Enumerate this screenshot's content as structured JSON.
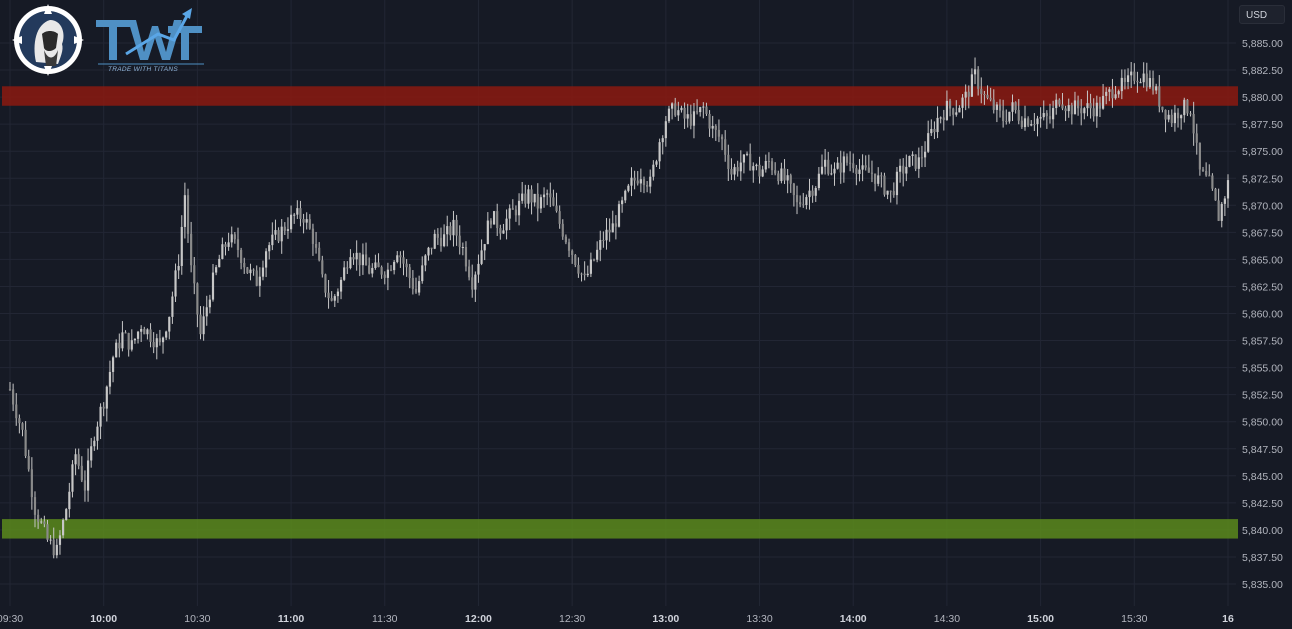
{
  "brand": {
    "wordmark": "TWT",
    "tagline": "TRADE WITH TITANS",
    "logo_icon": "titan-head-compass-icon",
    "colors": {
      "wordmark": "#4f90c4",
      "arrow": "#5aa6e6"
    }
  },
  "axis": {
    "currency": "USD"
  },
  "colors": {
    "background": "#161a25",
    "grid": "#222634",
    "candle": "#c7c7c7",
    "resistance_zone": "#8b1a10",
    "support_zone": "#5a8a1c"
  },
  "chart_data": {
    "type": "candlestick",
    "title": "",
    "xlabel": "",
    "ylabel": "",
    "y_ticks": [
      "5,885.00",
      "5,882.50",
      "5,880.00",
      "5,877.50",
      "5,875.00",
      "5,872.50",
      "5,870.00",
      "5,867.50",
      "5,865.00",
      "5,862.50",
      "5,860.00",
      "5,857.50",
      "5,855.00",
      "5,852.50",
      "5,850.00",
      "5,847.50",
      "5,845.00",
      "5,842.50",
      "5,840.00",
      "5,837.50",
      "5,835.00"
    ],
    "y_tick_values": [
      5885,
      5882.5,
      5880,
      5877.5,
      5875,
      5872.5,
      5870,
      5867.5,
      5865,
      5862.5,
      5860,
      5857.5,
      5855,
      5852.5,
      5850,
      5847.5,
      5845,
      5842.5,
      5840,
      5837.5,
      5835
    ],
    "x_ticks": [
      {
        "label": "09:30",
        "time": "09:30",
        "bold": false
      },
      {
        "label": "10:00",
        "time": "10:00",
        "bold": true
      },
      {
        "label": "10:30",
        "time": "10:30",
        "bold": false
      },
      {
        "label": "11:00",
        "time": "11:00",
        "bold": true
      },
      {
        "label": "11:30",
        "time": "11:30",
        "bold": false
      },
      {
        "label": "12:00",
        "time": "12:00",
        "bold": true
      },
      {
        "label": "12:30",
        "time": "12:30",
        "bold": false
      },
      {
        "label": "13:00",
        "time": "13:00",
        "bold": true
      },
      {
        "label": "13:30",
        "time": "13:30",
        "bold": false
      },
      {
        "label": "14:00",
        "time": "14:00",
        "bold": true
      },
      {
        "label": "14:30",
        "time": "14:30",
        "bold": false
      },
      {
        "label": "15:00",
        "time": "15:00",
        "bold": true
      },
      {
        "label": "15:30",
        "time": "15:30",
        "bold": false
      },
      {
        "label": "16",
        "time": "16:00",
        "bold": true
      }
    ],
    "zones": [
      {
        "name": "resistance",
        "low": 5879.2,
        "high": 5881.0,
        "color": "#8b1a10"
      },
      {
        "name": "support",
        "low": 5839.2,
        "high": 5841.0,
        "color": "#5a8a1c"
      }
    ],
    "price_path": [
      [
        "09:30",
        5853
      ],
      [
        "09:34",
        5849
      ],
      [
        "09:38",
        5842
      ],
      [
        "09:42",
        5839
      ],
      [
        "09:45",
        5838
      ],
      [
        "09:48",
        5842
      ],
      [
        "09:51",
        5847
      ],
      [
        "09:54",
        5844
      ],
      [
        "09:57",
        5849
      ],
      [
        "10:00",
        5852
      ],
      [
        "10:03",
        5856
      ],
      [
        "10:06",
        5858
      ],
      [
        "10:09",
        5857
      ],
      [
        "10:12",
        5859
      ],
      [
        "10:15",
        5858
      ],
      [
        "10:18",
        5857
      ],
      [
        "10:21",
        5860
      ],
      [
        "10:24",
        5865
      ],
      [
        "10:26",
        5871
      ],
      [
        "10:28",
        5864
      ],
      [
        "10:31",
        5858
      ],
      [
        "10:34",
        5862
      ],
      [
        "10:37",
        5865
      ],
      [
        "10:40",
        5867
      ],
      [
        "10:43",
        5866
      ],
      [
        "10:46",
        5864
      ],
      [
        "10:49",
        5863
      ],
      [
        "10:52",
        5866
      ],
      [
        "10:55",
        5867
      ],
      [
        "10:58",
        5868
      ],
      [
        "11:01",
        5869
      ],
      [
        "11:04",
        5869
      ],
      [
        "11:07",
        5867
      ],
      [
        "11:10",
        5863
      ],
      [
        "11:13",
        5861
      ],
      [
        "11:16",
        5863
      ],
      [
        "11:19",
        5866
      ],
      [
        "11:22",
        5865
      ],
      [
        "11:25",
        5864
      ],
      [
        "11:28",
        5864
      ],
      [
        "11:31",
        5864
      ],
      [
        "11:34",
        5866
      ],
      [
        "11:37",
        5864
      ],
      [
        "11:40",
        5862
      ],
      [
        "11:43",
        5865
      ],
      [
        "11:46",
        5867
      ],
      [
        "11:49",
        5867
      ],
      [
        "11:52",
        5868
      ],
      [
        "11:55",
        5866
      ],
      [
        "11:58",
        5863
      ],
      [
        "12:01",
        5866
      ],
      [
        "12:04",
        5869
      ],
      [
        "12:07",
        5868
      ],
      [
        "12:10",
        5869
      ],
      [
        "12:13",
        5870
      ],
      [
        "12:16",
        5871
      ],
      [
        "12:19",
        5870
      ],
      [
        "12:22",
        5871
      ],
      [
        "12:25",
        5869
      ],
      [
        "12:28",
        5867
      ],
      [
        "12:31",
        5865
      ],
      [
        "12:34",
        5863
      ],
      [
        "12:37",
        5865
      ],
      [
        "12:40",
        5867
      ],
      [
        "12:43",
        5868
      ],
      [
        "12:46",
        5870
      ],
      [
        "12:49",
        5872
      ],
      [
        "12:52",
        5873
      ],
      [
        "12:55",
        5872
      ],
      [
        "12:58",
        5876
      ],
      [
        "13:00",
        5878
      ],
      [
        "13:03",
        5879
      ],
      [
        "13:06",
        5878
      ],
      [
        "13:09",
        5878
      ],
      [
        "13:12",
        5879
      ],
      [
        "13:15",
        5877
      ],
      [
        "13:18",
        5876
      ],
      [
        "13:21",
        5873
      ],
      [
        "13:24",
        5874
      ],
      [
        "13:27",
        5874
      ],
      [
        "13:30",
        5873
      ],
      [
        "13:33",
        5874
      ],
      [
        "13:36",
        5873
      ],
      [
        "13:39",
        5872
      ],
      [
        "13:42",
        5870
      ],
      [
        "13:45",
        5871
      ],
      [
        "13:48",
        5872
      ],
      [
        "13:51",
        5874
      ],
      [
        "13:54",
        5873
      ],
      [
        "13:57",
        5874
      ],
      [
        "14:00",
        5874
      ],
      [
        "14:03",
        5873
      ],
      [
        "14:06",
        5873
      ],
      [
        "14:09",
        5872
      ],
      [
        "14:12",
        5871
      ],
      [
        "14:15",
        5873
      ],
      [
        "14:18",
        5874
      ],
      [
        "14:21",
        5874
      ],
      [
        "14:24",
        5876
      ],
      [
        "14:27",
        5878
      ],
      [
        "14:30",
        5879
      ],
      [
        "14:33",
        5879
      ],
      [
        "14:36",
        5880
      ],
      [
        "14:39",
        5882
      ],
      [
        "14:42",
        5880
      ],
      [
        "14:45",
        5879
      ],
      [
        "14:48",
        5878
      ],
      [
        "14:51",
        5879
      ],
      [
        "14:54",
        5878
      ],
      [
        "14:57",
        5878
      ],
      [
        "15:00",
        5878
      ],
      [
        "15:03",
        5878
      ],
      [
        "15:06",
        5880
      ],
      [
        "15:09",
        5879
      ],
      [
        "15:12",
        5879
      ],
      [
        "15:15",
        5879
      ],
      [
        "15:18",
        5879
      ],
      [
        "15:21",
        5880
      ],
      [
        "15:24",
        5881
      ],
      [
        "15:27",
        5881
      ],
      [
        "15:30",
        5882
      ],
      [
        "15:33",
        5882
      ],
      [
        "15:36",
        5881
      ],
      [
        "15:39",
        5879
      ],
      [
        "15:42",
        5878
      ],
      [
        "15:45",
        5879
      ],
      [
        "15:48",
        5879
      ],
      [
        "15:51",
        5873
      ],
      [
        "15:54",
        5872
      ],
      [
        "15:57",
        5869
      ],
      [
        "16:00",
        5872
      ]
    ]
  }
}
